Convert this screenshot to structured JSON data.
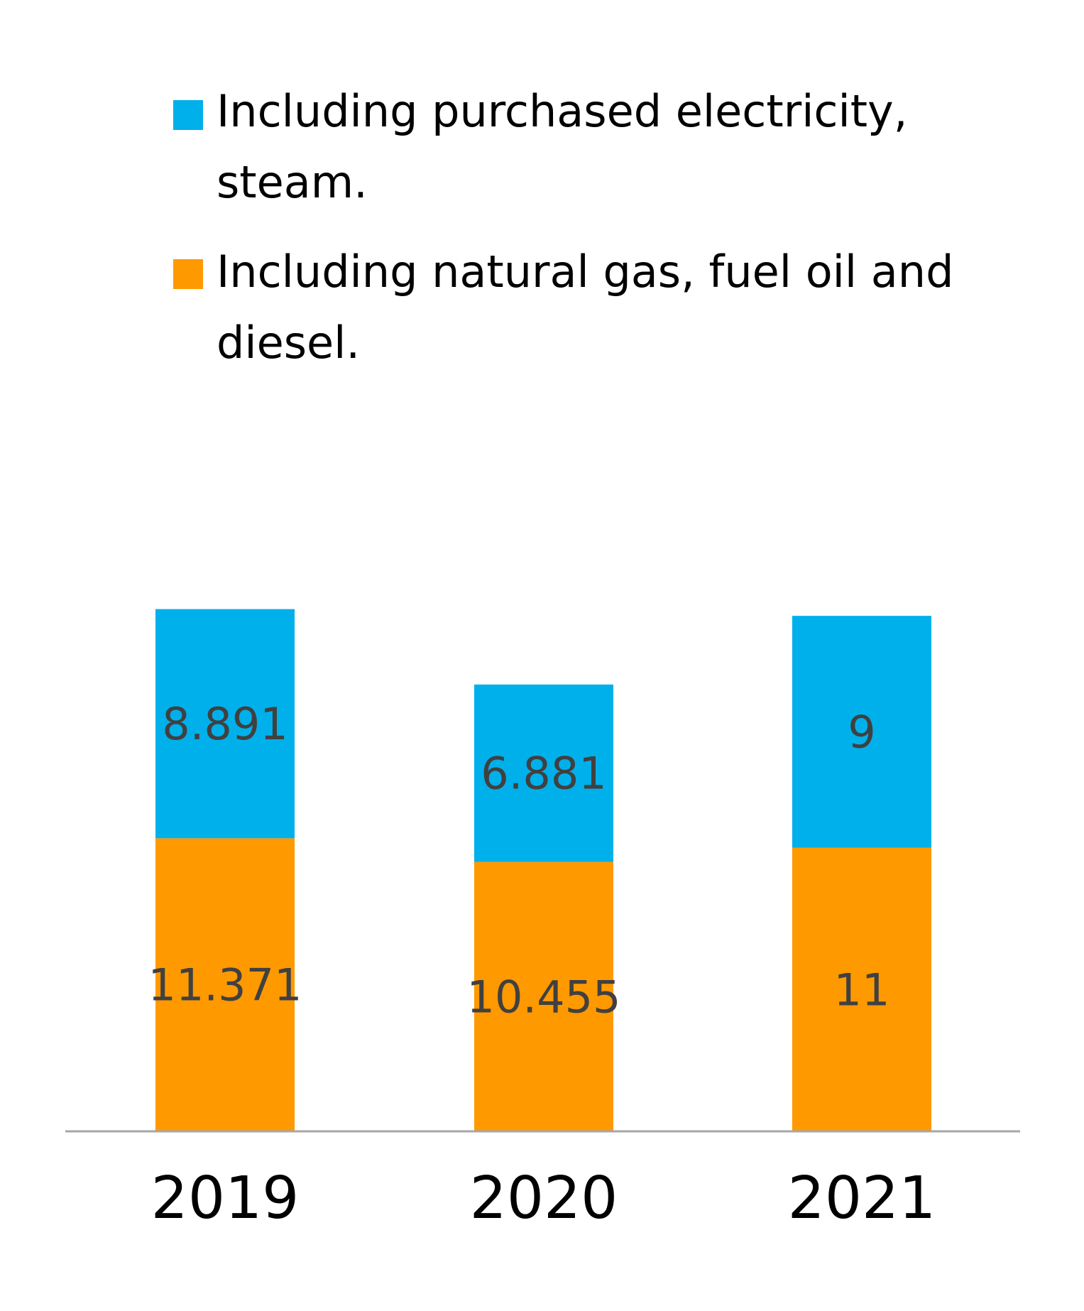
{
  "chart_data": {
    "type": "bar",
    "stacked": true,
    "categories": [
      "2019",
      "2020",
      "2021"
    ],
    "series": [
      {
        "name_lines": [
          "Including natural gas, fuel oil and",
          "diesel."
        ],
        "name": "Including natural gas, fuel oil and diesel.",
        "color": "#FF9900",
        "values": [
          11.371,
          10.455,
          11
        ],
        "labels": [
          "11.371",
          "10.455",
          "11"
        ]
      },
      {
        "name_lines": [
          "Including purchased electricity,",
          "steam."
        ],
        "name": "Including purchased electricity, steam.",
        "color": "#00B0EA",
        "values": [
          8.891,
          6.881,
          9
        ],
        "labels": [
          "8.891",
          "6.881",
          "9"
        ]
      }
    ],
    "legend_position": "top",
    "legend_order": [
      1,
      0
    ],
    "ylim": [
      0,
      26.26
    ],
    "grid": false,
    "y_axis_shown": false,
    "baseline_color": "#A6A6A6"
  }
}
